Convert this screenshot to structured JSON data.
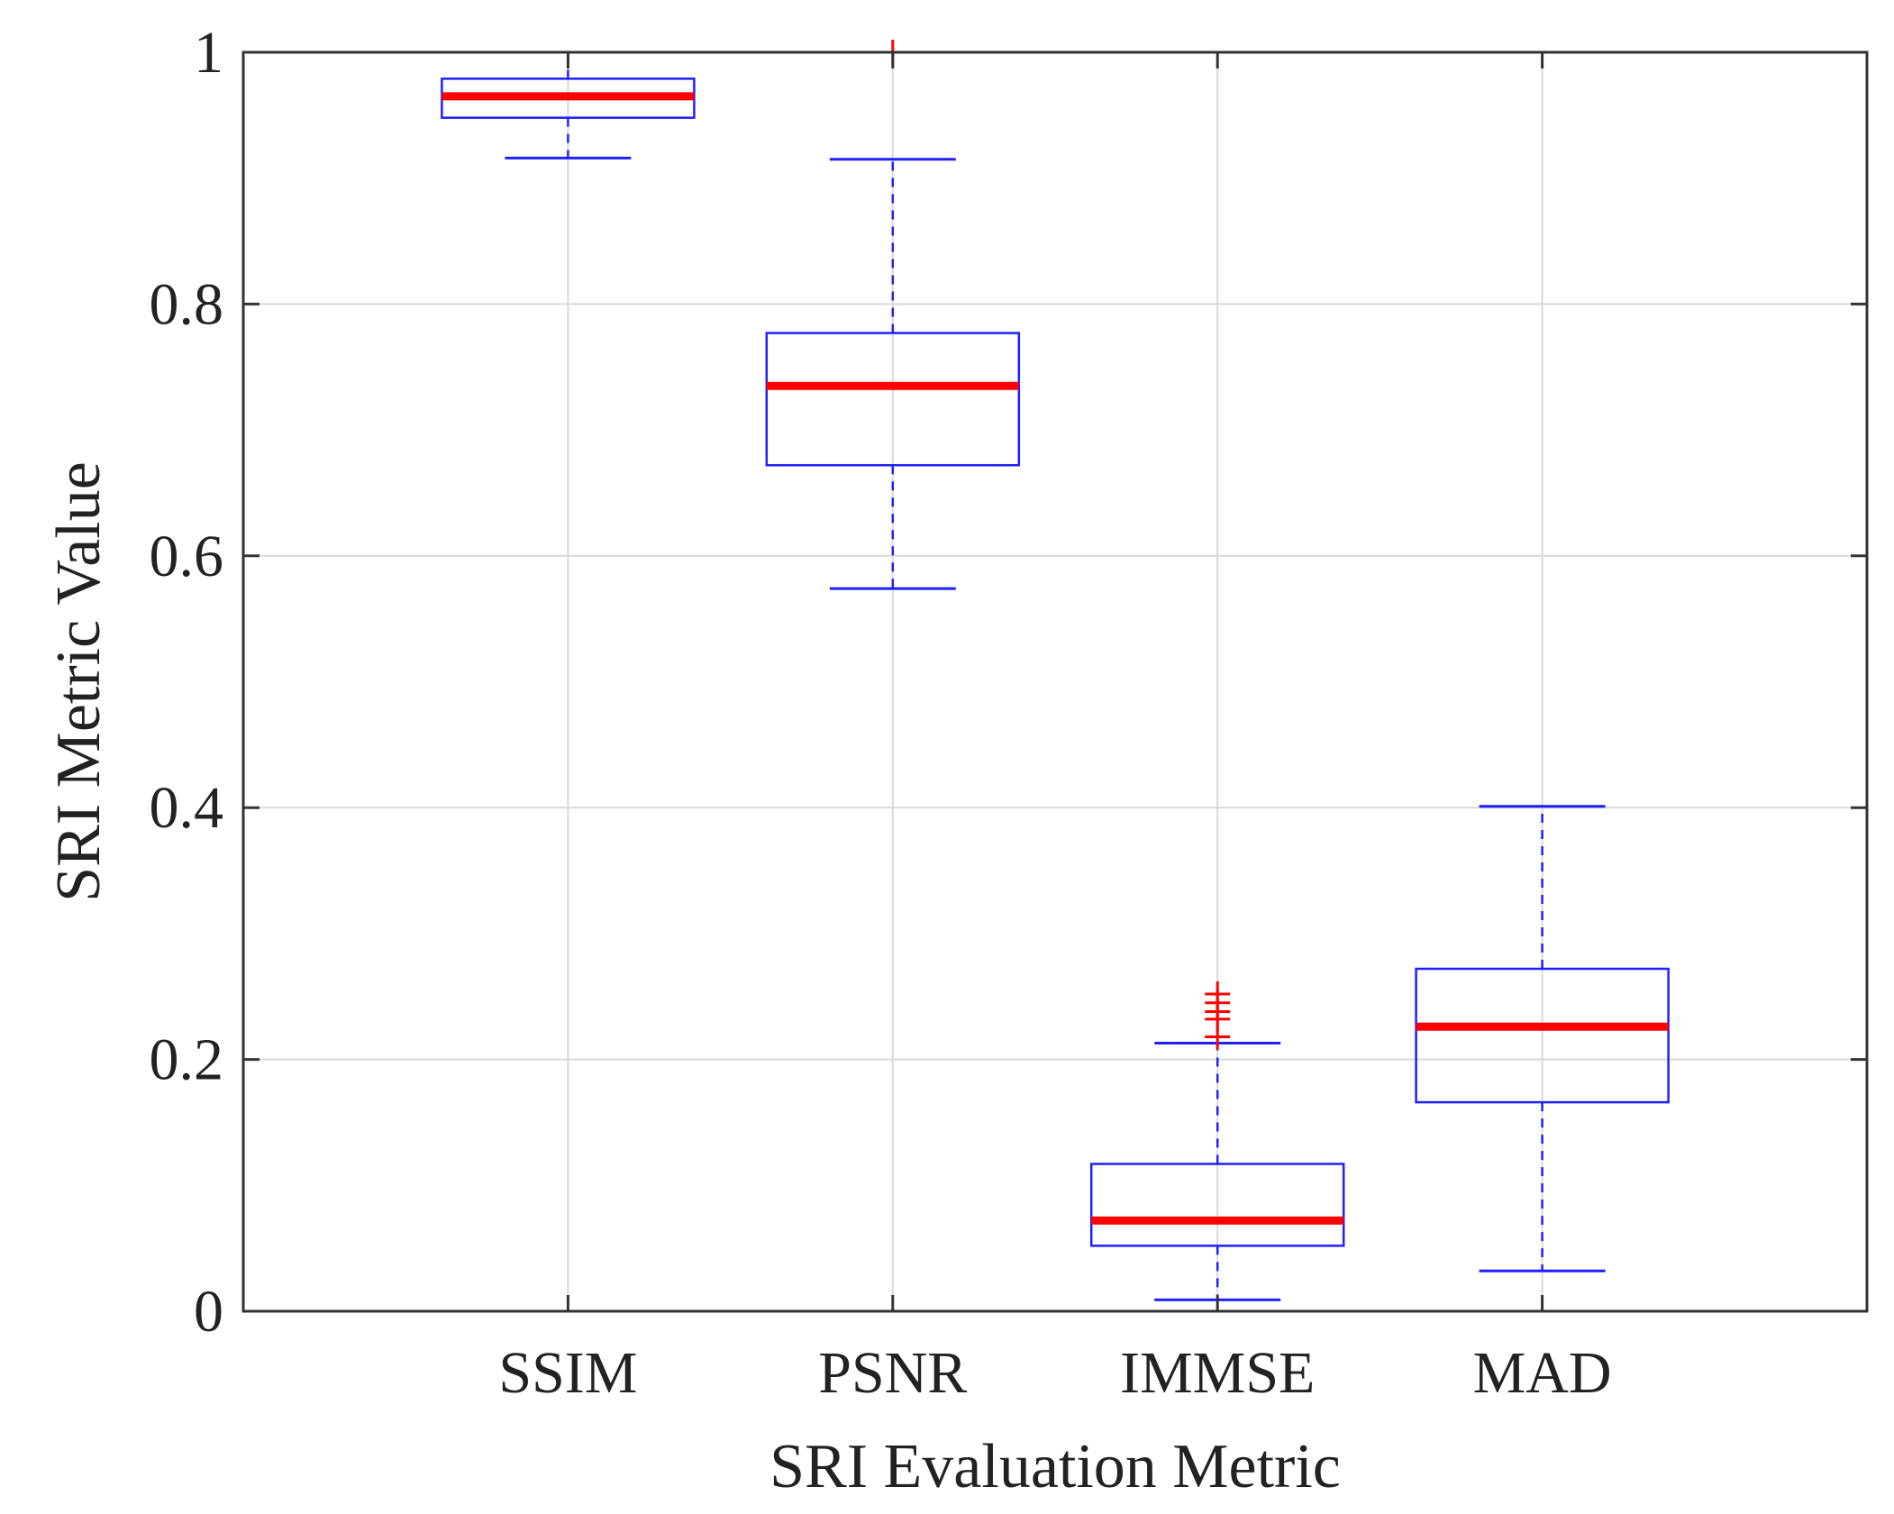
{
  "chart_data": {
    "type": "boxplot",
    "title": "",
    "xlabel": "SRI Evaluation Metric",
    "ylabel": "SRI Metric Value",
    "ylim": [
      0,
      1
    ],
    "yticks": [
      0,
      0.2,
      0.4,
      0.6,
      0.8,
      1
    ],
    "ytick_labels": [
      "0",
      "0.2",
      "0.4",
      "0.6",
      "0.8",
      "1"
    ],
    "grid": true,
    "categories": [
      "SSIM",
      "PSNR",
      "IMMSE",
      "MAD"
    ],
    "boxes": [
      {
        "name": "SSIM",
        "whisker_low": 0.916,
        "q1": 0.948,
        "median": 0.965,
        "q3": 0.979,
        "whisker_high": 1.0,
        "outliers": []
      },
      {
        "name": "PSNR",
        "whisker_low": 0.574,
        "q1": 0.672,
        "median": 0.735,
        "q3": 0.777,
        "whisker_high": 0.915,
        "outliers": [
          1.0
        ]
      },
      {
        "name": "IMMSE",
        "whisker_low": 0.009,
        "q1": 0.052,
        "median": 0.072,
        "q3": 0.117,
        "whisker_high": 0.213,
        "outliers": [
          0.218,
          0.232,
          0.238,
          0.245,
          0.252
        ]
      },
      {
        "name": "MAD",
        "whisker_low": 0.032,
        "q1": 0.166,
        "median": 0.226,
        "q3": 0.272,
        "whisker_high": 0.401,
        "outliers": []
      }
    ],
    "colors": {
      "box": "#1f1fff",
      "median": "#ff0000",
      "outlier": "#ff0000",
      "axis": "#333333",
      "grid": "#d9d9d9"
    }
  }
}
